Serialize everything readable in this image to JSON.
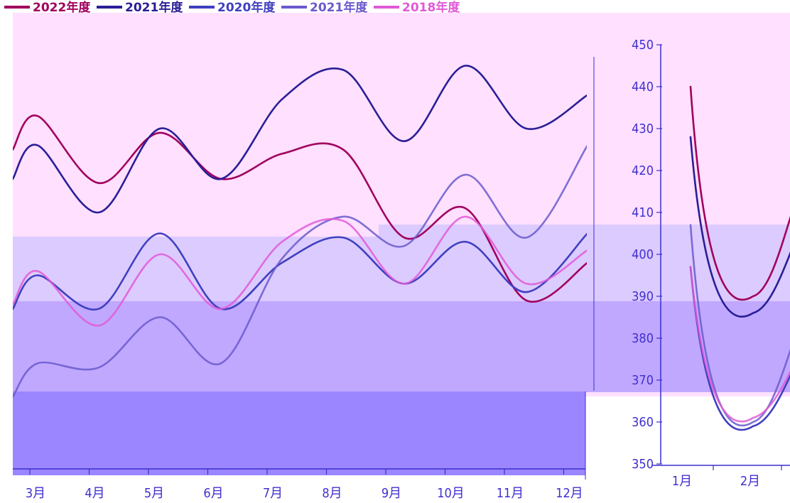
{
  "legend": [
    {
      "label": "2022年度",
      "color": "#a0005e"
    },
    {
      "label": "2021年度",
      "color": "#2a1e96"
    },
    {
      "label": "2020年度",
      "color": "#4040c0"
    },
    {
      "label": "2021年度",
      "color": "#6a5acd"
    },
    {
      "label": "2018年度",
      "color": "#e05ad8"
    }
  ],
  "colors": {
    "band_pink": "#ffe0ff",
    "band_lavender": "#dccbff",
    "band_violet": "#c0a8ff",
    "band_bottom": "#9c86ff",
    "axis": "#3a2fd0",
    "tick_text": "#4030d0"
  },
  "chart_data": [
    {
      "type": "line",
      "categories": [
        "3月",
        "4月",
        "5月",
        "6月",
        "7月",
        "8月",
        "9月",
        "10月",
        "11月",
        "12月"
      ],
      "series": [
        {
          "name": "2022年度",
          "color": "#a0005e",
          "values": [
            433,
            417,
            429,
            418,
            424,
            425,
            404,
            411,
            389,
            398
          ]
        },
        {
          "name": "2021年度",
          "color": "#2a1e96",
          "values": [
            426,
            410,
            430,
            418,
            437,
            444,
            427,
            445,
            430,
            438
          ]
        },
        {
          "name": "2020年度",
          "color": "#4040c0",
          "values": [
            395,
            387,
            405,
            387,
            398,
            404,
            393,
            403,
            391,
            405
          ]
        },
        {
          "name": "2021年度",
          "color": "#6a5acd",
          "values": [
            374,
            373,
            385,
            374,
            399,
            409,
            402,
            419,
            404,
            426
          ]
        },
        {
          "name": "2018年度",
          "color": "#e05ad8",
          "values": [
            396,
            383,
            400,
            387,
            403,
            408,
            393,
            409,
            393,
            401
          ]
        }
      ],
      "xlabel": "",
      "ylabel": "",
      "ylim": [
        350,
        450
      ],
      "grid": false
    },
    {
      "type": "line",
      "categories": [
        "1月",
        "2月"
      ],
      "yticks": [
        "350",
        "360",
        "370",
        "380",
        "390",
        "400",
        "410",
        "420",
        "430",
        "440",
        "450"
      ],
      "series": [
        {
          "name": "2022年度",
          "color": "#a0005e",
          "values": [
            440,
            390
          ]
        },
        {
          "name": "2021年度",
          "color": "#2a1e96",
          "values": [
            428,
            386
          ]
        },
        {
          "name": "2020年度",
          "color": "#4040c0",
          "values": [
            397,
            359
          ]
        },
        {
          "name": "2021年度",
          "color": "#6a5acd",
          "values": [
            407,
            360
          ]
        },
        {
          "name": "2018年度",
          "color": "#e05ad8",
          "values": [
            397,
            361
          ]
        }
      ],
      "xlabel": "",
      "ylabel": "",
      "ylim": [
        350,
        450
      ],
      "grid": false
    }
  ]
}
